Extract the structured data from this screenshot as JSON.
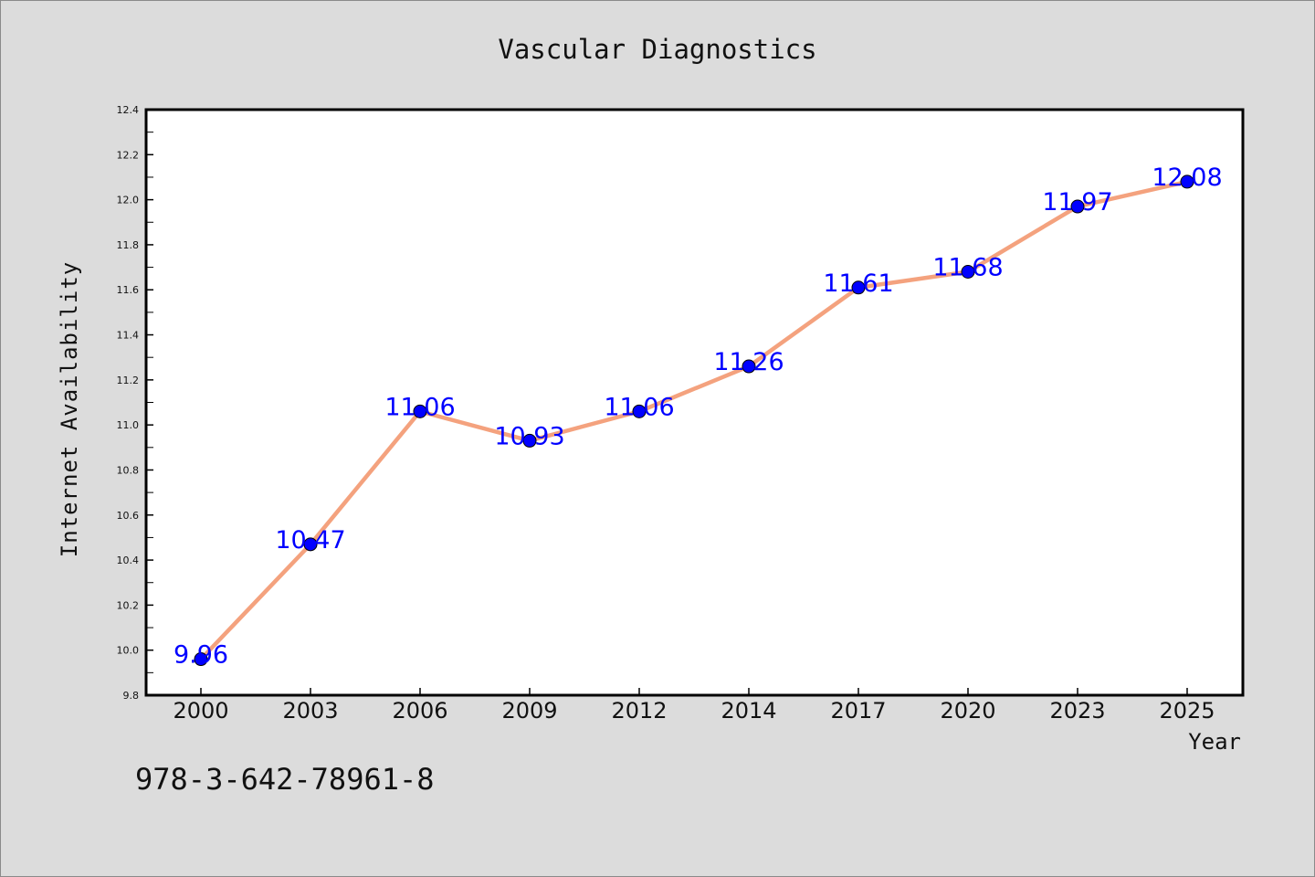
{
  "chart_data": {
    "type": "line",
    "title": "Vascular Diagnostics",
    "xlabel": "Year",
    "ylabel": "Internet Availability",
    "categories": [
      "2000",
      "2003",
      "2006",
      "2009",
      "2012",
      "2014",
      "2017",
      "2020",
      "2023",
      "2025"
    ],
    "series": [
      {
        "values": [
          9.96,
          10.47,
          11.06,
          10.93,
          11.06,
          11.26,
          11.61,
          11.68,
          11.97,
          12.08
        ]
      }
    ],
    "data_labels": [
      "9.96",
      "10.47",
      "11.06",
      "10.93",
      "11.06",
      "11.26",
      "11.61",
      "11.68",
      "11.97",
      "12.08"
    ],
    "ylim": [
      9.8,
      12.4
    ],
    "yticks": [
      "9.8",
      "10.0",
      "10.2",
      "10.4",
      "10.6",
      "10.8",
      "11.0",
      "11.2",
      "11.4",
      "11.6",
      "11.8",
      "12.0",
      "12.2",
      "12.4"
    ],
    "grid": false,
    "line_color": "#f4a27e",
    "marker_color": "#0000ff",
    "label_color": "#0000ff"
  },
  "footer": {
    "isbn": "978-3-642-78961-8"
  }
}
